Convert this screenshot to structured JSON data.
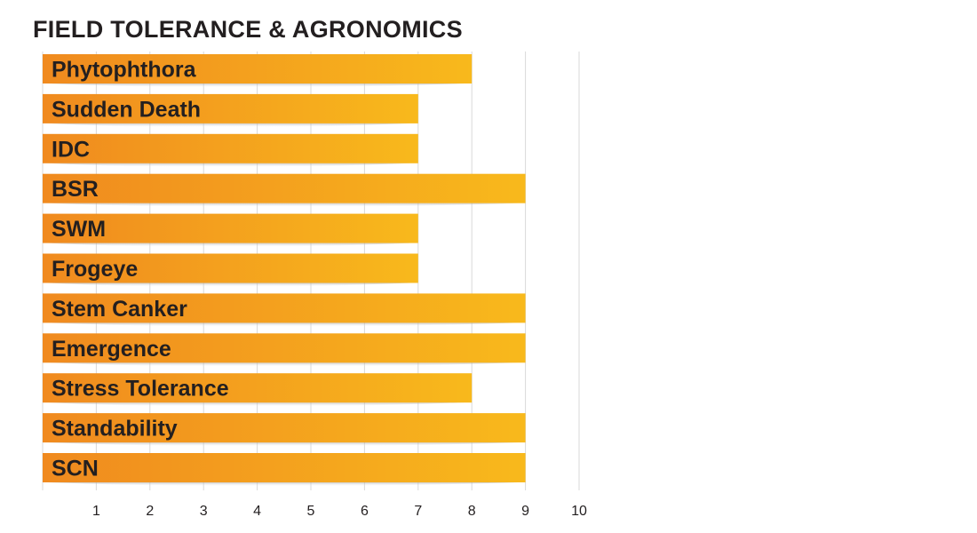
{
  "colors": {
    "bar_start": "#f08a1f",
    "bar_end": "#f8b91c",
    "shadow": "#bdbdbd",
    "grid": "#d9d9d9",
    "text": "#231f20"
  },
  "chart_data": {
    "type": "bar",
    "orientation": "horizontal",
    "title": "FIELD TOLERANCE & AGRONOMICS",
    "categories": [
      "Phytophthora",
      "Sudden Death",
      "IDC",
      "BSR",
      "SWM",
      "Frogeye",
      "Stem Canker",
      "Emergence",
      "Stress Tolerance",
      "Standability",
      "SCN"
    ],
    "values": [
      8,
      7,
      7,
      9,
      7,
      7,
      9,
      9,
      8,
      9,
      9
    ],
    "xlim": [
      0,
      10
    ],
    "xticks": [
      1,
      2,
      3,
      4,
      5,
      6,
      7,
      8,
      9,
      10
    ],
    "grid": true,
    "legend": "none"
  }
}
